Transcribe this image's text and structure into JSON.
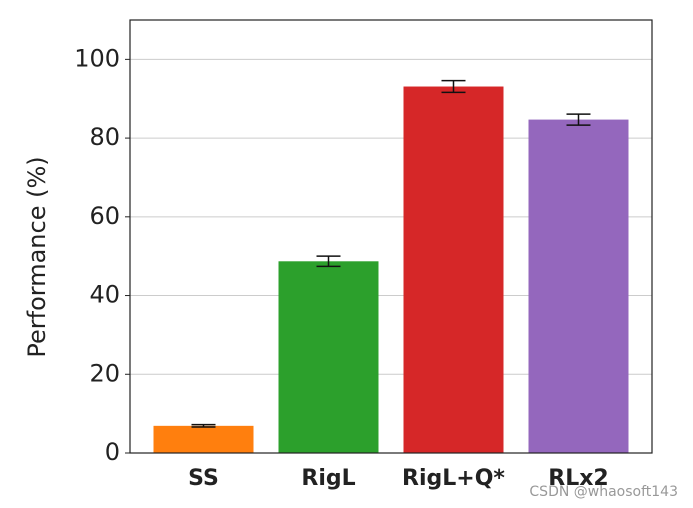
{
  "chart_data": {
    "type": "bar",
    "ylabel": "Performance (%)",
    "categories": [
      "SS",
      "RigL",
      "RigL+Q*",
      "RLx2"
    ],
    "values": [
      6.9,
      48.7,
      93.1,
      84.7
    ],
    "errors": [
      0.3,
      1.3,
      1.5,
      1.4
    ],
    "colors": [
      "#ff7f0e",
      "#2ca02c",
      "#d62728",
      "#9467bd"
    ],
    "ylim": [
      0,
      110
    ],
    "yticks": [
      0,
      20,
      40,
      60,
      80,
      100
    ],
    "grid": true,
    "annotation": "CSDN @whaosoft143"
  }
}
